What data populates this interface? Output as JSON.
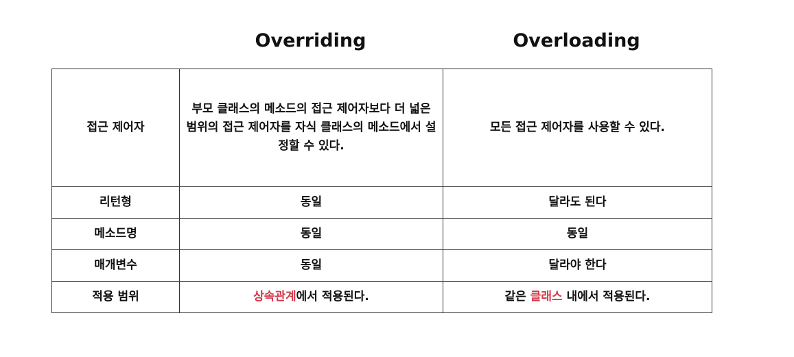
{
  "headers": {
    "overriding": "Overriding",
    "overloading": "Overloading"
  },
  "rows": [
    {
      "label": "접근 제어자",
      "overriding": "부모 클래스의 메소드의 접근 제어자보다 더 넓은 범위의 접근 제어자를 자식 클래스의 메소드에서 설정할 수 있다.",
      "overloading": "모든 접근 제어자를 사용할 수 있다."
    },
    {
      "label": "리턴형",
      "overriding": "동일",
      "overloading": "달라도 된다"
    },
    {
      "label": "메소드명",
      "overriding": "동일",
      "overloading": "동일"
    },
    {
      "label": "매개변수",
      "overriding": "동일",
      "overloading": "달라야 한다"
    },
    {
      "label": "적용 범위",
      "overriding": {
        "highlight": "상속관계",
        "rest": "에서 적용된다."
      },
      "overloading": {
        "prefix": "같은 ",
        "highlight": "클래스",
        "rest": " 내에서 적용된다."
      }
    }
  ],
  "colors": {
    "highlight": "#d43a4a",
    "border": "#333333",
    "text": "#111111"
  }
}
